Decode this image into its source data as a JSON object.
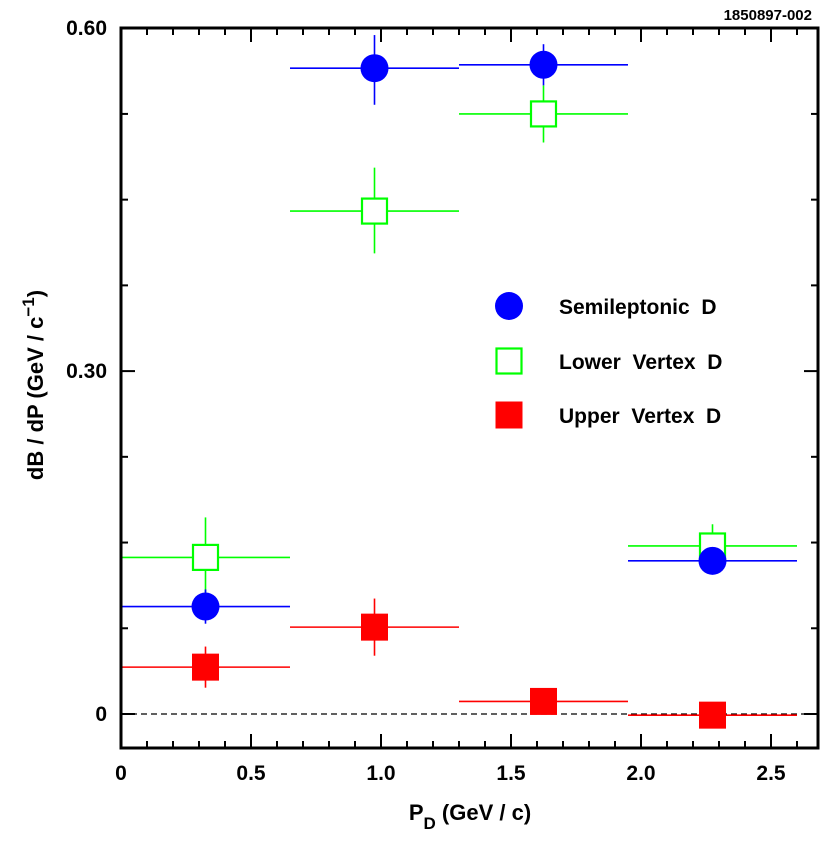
{
  "figure_id": "1850897-002",
  "chart_data": {
    "type": "scatter",
    "title": "",
    "xlabel_main": "P",
    "xlabel_sub": "D",
    "xlabel_rest": " (GeV / c)",
    "ylabel_main": "dB / dP (GeV / c",
    "ylabel_sup": "−1",
    "ylabel_close": ")",
    "xlim": [
      0,
      2.7
    ],
    "ylim": [
      -0.03,
      0.6
    ],
    "x_ticks": [
      {
        "value": 0,
        "label": "0"
      },
      {
        "value": 0.5,
        "label": "0.5"
      },
      {
        "value": 1.0,
        "label": "1.0"
      },
      {
        "value": 1.5,
        "label": "1.5"
      },
      {
        "value": 2.0,
        "label": "2.0"
      },
      {
        "value": 2.5,
        "label": "2.5"
      }
    ],
    "y_ticks": [
      {
        "value": 0,
        "label": "0"
      },
      {
        "value": 0.3,
        "label": "0.30"
      },
      {
        "value": 0.6,
        "label": "0.60"
      }
    ],
    "series": [
      {
        "name": "Semileptonic  D",
        "marker": "filled-circle",
        "color": "#0000ff",
        "points": [
          {
            "x": 0.325,
            "y": 0.094,
            "xlo": 0.0,
            "xhi": 0.65,
            "ylo": 0.079,
            "yhi": 0.109
          },
          {
            "x": 0.975,
            "y": 0.565,
            "xlo": 0.65,
            "xhi": 1.3,
            "ylo": 0.533,
            "yhi": 0.594
          },
          {
            "x": 1.625,
            "y": 0.568,
            "xlo": 1.3,
            "xhi": 1.95,
            "ylo": 0.55,
            "yhi": 0.586
          },
          {
            "x": 2.275,
            "y": 0.134,
            "xlo": 1.95,
            "xhi": 2.6,
            "ylo": 0.126,
            "yhi": 0.142
          }
        ]
      },
      {
        "name": "Lower  Vertex  D",
        "marker": "open-square",
        "color": "#00ff00",
        "points": [
          {
            "x": 0.325,
            "y": 0.137,
            "xlo": 0.0,
            "xhi": 0.65,
            "ylo": 0.105,
            "yhi": 0.172
          },
          {
            "x": 0.975,
            "y": 0.44,
            "xlo": 0.65,
            "xhi": 1.3,
            "ylo": 0.403,
            "yhi": 0.478
          },
          {
            "x": 1.625,
            "y": 0.525,
            "xlo": 1.3,
            "xhi": 1.95,
            "ylo": 0.5,
            "yhi": 0.55
          },
          {
            "x": 2.275,
            "y": 0.147,
            "xlo": 1.95,
            "xhi": 2.6,
            "ylo": 0.128,
            "yhi": 0.166
          }
        ]
      },
      {
        "name": "Upper  Vertex  D",
        "marker": "filled-square",
        "color": "#ff0000",
        "points": [
          {
            "x": 0.325,
            "y": 0.041,
            "xlo": 0.0,
            "xhi": 0.65,
            "ylo": 0.023,
            "yhi": 0.059
          },
          {
            "x": 0.975,
            "y": 0.076,
            "xlo": 0.65,
            "xhi": 1.3,
            "ylo": 0.051,
            "yhi": 0.101
          },
          {
            "x": 1.625,
            "y": 0.011,
            "xlo": 1.3,
            "xhi": 1.95,
            "ylo": 0.003,
            "yhi": 0.019
          },
          {
            "x": 2.275,
            "y": -0.001,
            "xlo": 1.95,
            "xhi": 2.6,
            "ylo": -0.006,
            "yhi": 0.004
          }
        ]
      }
    ],
    "reference_line": {
      "y": 0,
      "style": "dashed"
    },
    "legend_position": "right-middle"
  }
}
